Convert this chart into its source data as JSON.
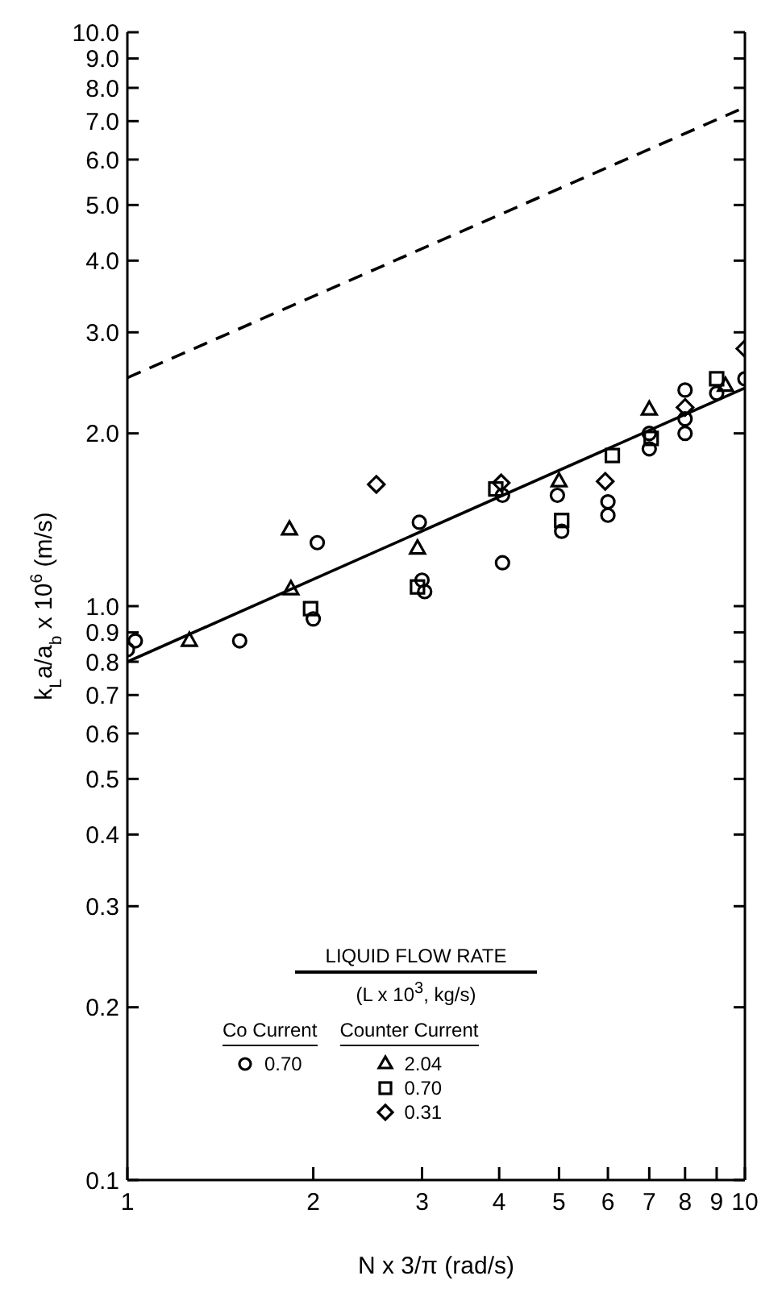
{
  "chart_data": {
    "type": "scatter",
    "xlabel": "N x 3/π (rad/s)",
    "ylabel": "k$_{L}$a/a$_{b}$ x 10$^{6}$ (m/s)",
    "log": "xy",
    "xlim": [
      1,
      10
    ],
    "ylim": [
      0.1,
      10
    ],
    "xticks": [
      1,
      2,
      3,
      4,
      5,
      6,
      7,
      8,
      9,
      10
    ],
    "yticks": [
      {
        "value": 0.1,
        "label": "0.1"
      },
      0.2,
      0.3,
      0.4,
      0.5,
      0.6,
      0.7,
      0.8,
      0.9,
      {
        "value": 1,
        "label": "1.0"
      },
      {
        "value": 2,
        "label": "2.0"
      },
      {
        "value": 3,
        "label": "3.0"
      },
      {
        "value": 4,
        "label": "4.0"
      },
      {
        "value": 5,
        "label": "5.0"
      },
      {
        "value": 6,
        "label": "6.0"
      },
      {
        "value": 7,
        "label": "7.0"
      },
      {
        "value": 8,
        "label": "8.0"
      },
      {
        "value": 9,
        "label": "9.0"
      },
      {
        "value": 10,
        "label": "10.0"
      }
    ],
    "legend": "bottom",
    "legend_title": "LIQUID FLOW RATE",
    "annotations": [
      "(L x 10$^{3}$, kg/s)",
      "Co Current",
      "Counter Current"
    ],
    "series": [
      {
        "name": "0.70",
        "color": "#000000",
        "marker": "circle",
        "x": [
          1.0,
          1.03,
          1.52,
          2.03,
          2.0,
          2.97,
          3.0,
          3.03,
          4.05,
          4.05,
          4.97,
          5.05,
          6.0,
          6.0,
          7.0,
          7.0,
          8.0,
          8.0,
          8.0,
          9.0,
          10.0
        ],
        "values": [
          0.84,
          0.87,
          0.87,
          1.29,
          0.95,
          1.4,
          1.11,
          1.06,
          1.56,
          1.19,
          1.56,
          1.35,
          1.52,
          1.44,
          1.88,
          2.0,
          2.38,
          2.12,
          2.0,
          2.35,
          2.49
        ]
      },
      {
        "name": "2.04",
        "color": "#000000",
        "marker": "triangle",
        "x": [
          1.26,
          1.83,
          1.84,
          2.95,
          5.0,
          7.0,
          9.3
        ],
        "values": [
          0.87,
          1.36,
          1.07,
          1.26,
          1.65,
          2.2,
          2.42
        ]
      },
      {
        "name": "0.70",
        "color": "#000000",
        "marker": "square",
        "x": [
          1.98,
          2.95,
          3.95,
          5.05,
          6.1,
          7.05,
          9.0
        ],
        "values": [
          0.99,
          1.08,
          1.6,
          1.41,
          1.83,
          1.96,
          2.49
        ]
      },
      {
        "name": "0.31",
        "color": "#000000",
        "marker": "diamond",
        "x": [
          2.53,
          4.03,
          5.94,
          8.0,
          10.0
        ],
        "values": [
          1.63,
          1.64,
          1.65,
          2.22,
          2.81
        ]
      },
      {
        "type": "line",
        "color": "#000000",
        "line_style": "solid",
        "marker": "none",
        "x": [
          1,
          10
        ],
        "values": [
          0.8,
          2.4
        ]
      },
      {
        "type": "line",
        "color": "#000000",
        "line_style": "dashed",
        "marker": "none",
        "x": [
          1,
          10
        ],
        "values": [
          2.5,
          7.4
        ]
      }
    ]
  }
}
